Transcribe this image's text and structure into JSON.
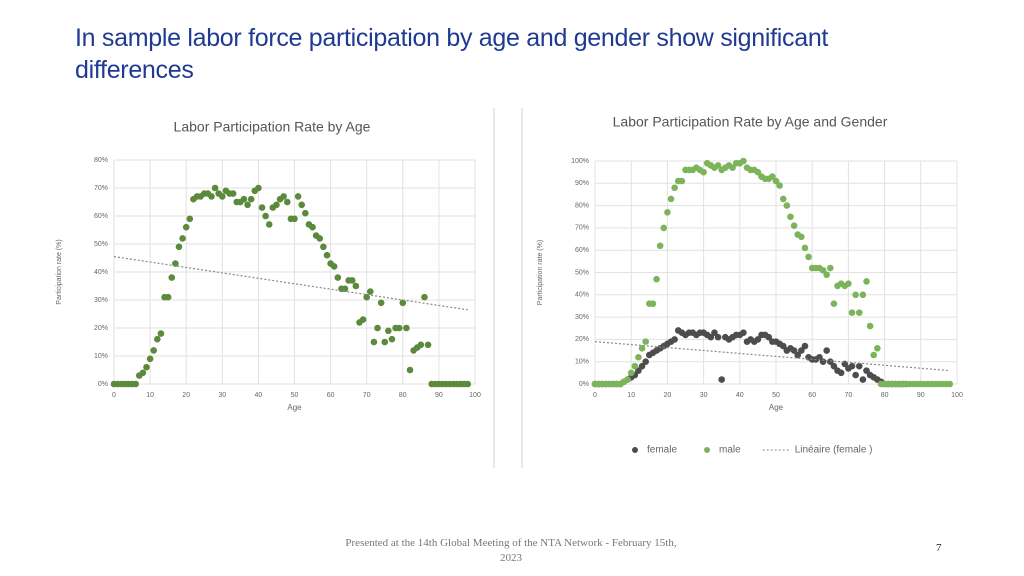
{
  "slide": {
    "title": "In sample labor force participation by age and gender show significant differences",
    "footer": "Presented at the 14th Global Meeting of the NTA Network - February 15th, 2023",
    "page_number": "7"
  },
  "chart_data": [
    {
      "type": "scatter",
      "title": "Labor Participation Rate by Age",
      "xlabel": "Age",
      "ylabel": "Participation rate (%)",
      "xlim": [
        0,
        100
      ],
      "xticks": [
        0,
        10,
        20,
        30,
        40,
        50,
        60,
        70,
        80,
        90,
        100
      ],
      "ylim": [
        0,
        80
      ],
      "yticks": [
        {
          "value": 0,
          "label": "0%"
        },
        {
          "value": 10,
          "label": "10%"
        },
        {
          "value": 20,
          "label": "20%"
        },
        {
          "value": 30,
          "label": "30%"
        },
        {
          "value": 40,
          "label": "40%"
        },
        {
          "value": 50,
          "label": "50%"
        },
        {
          "value": 60,
          "label": "60%"
        },
        {
          "value": 70,
          "label": "70%"
        },
        {
          "value": 80,
          "label": "80%"
        }
      ],
      "grid": true,
      "legend": false,
      "series": [
        {
          "color": "#5b8a3c",
          "x": [
            0,
            1,
            2,
            3,
            4,
            5,
            6,
            7,
            8,
            9,
            10,
            11,
            12,
            13,
            14,
            15,
            16,
            17,
            18,
            19,
            20,
            21,
            22,
            23,
            24,
            25,
            26,
            27,
            28,
            29,
            30,
            31,
            32,
            33,
            34,
            35,
            36,
            37,
            38,
            39,
            40,
            41,
            42,
            43,
            44,
            45,
            46,
            47,
            48,
            49,
            50,
            51,
            52,
            53,
            54,
            55,
            56,
            57,
            58,
            59,
            60,
            61,
            62,
            63,
            64,
            65,
            66,
            67,
            68,
            69,
            70,
            71,
            72,
            73,
            74,
            75,
            76,
            77,
            78,
            79,
            80,
            81,
            82,
            83,
            84,
            85,
            86,
            87,
            88,
            89,
            90,
            91,
            92,
            93,
            94,
            95,
            96,
            97,
            98
          ],
          "values": [
            0,
            0,
            0,
            0,
            0,
            0,
            0,
            3,
            4,
            6,
            9,
            12,
            16,
            18,
            31,
            31,
            38,
            43,
            49,
            52,
            56,
            59,
            66,
            67,
            67,
            68,
            68,
            67,
            70,
            68,
            67,
            69,
            68,
            68,
            65,
            65,
            66,
            64,
            66,
            69,
            70,
            63,
            60,
            57,
            63,
            64,
            66,
            67,
            65,
            59,
            59,
            67,
            64,
            61,
            57,
            56,
            53,
            52,
            49,
            46,
            43,
            42,
            38,
            34,
            34,
            37,
            37,
            35,
            22,
            23,
            31,
            33,
            15,
            20,
            29,
            15,
            19,
            16,
            20,
            20,
            29,
            20,
            5,
            12,
            13,
            14,
            31,
            14,
            0,
            0,
            0,
            0,
            0,
            0,
            0,
            0,
            0,
            0,
            0
          ]
        },
        {
          "color": "#888888",
          "style": "dotted",
          "x": [
            0,
            98
          ],
          "values": [
            45.5,
            26.5
          ]
        }
      ]
    },
    {
      "type": "scatter",
      "title": "Labor Participation Rate by Age and Gender",
      "xlabel": "Age",
      "ylabel": "Participation rate (%)",
      "xlim": [
        0,
        100
      ],
      "xticks": [
        0,
        10,
        20,
        30,
        40,
        50,
        60,
        70,
        80,
        90,
        100
      ],
      "ylim": [
        0,
        100
      ],
      "yticks": [
        {
          "value": 0,
          "label": "0%"
        },
        {
          "value": 10,
          "label": "10%"
        },
        {
          "value": 20,
          "label": "20%"
        },
        {
          "value": 30,
          "label": "30%"
        },
        {
          "value": 40,
          "label": "40%"
        },
        {
          "value": 50,
          "label": "50%"
        },
        {
          "value": 60,
          "label": "60%"
        },
        {
          "value": 70,
          "label": "70%"
        },
        {
          "value": 80,
          "label": "80%"
        },
        {
          "value": 90,
          "label": "90%"
        },
        {
          "value": 100,
          "label": "100%"
        }
      ],
      "grid": true,
      "legend": "bottom",
      "series": [
        {
          "name": "female",
          "color": "#4d4d4d",
          "x": [
            0,
            1,
            2,
            3,
            4,
            5,
            6,
            7,
            8,
            9,
            10,
            11,
            12,
            13,
            14,
            15,
            16,
            17,
            18,
            19,
            20,
            21,
            22,
            23,
            24,
            25,
            26,
            27,
            28,
            29,
            30,
            31,
            32,
            33,
            34,
            35,
            36,
            37,
            38,
            39,
            40,
            41,
            42,
            43,
            44,
            45,
            46,
            47,
            48,
            49,
            50,
            51,
            52,
            53,
            54,
            55,
            56,
            57,
            58,
            59,
            60,
            61,
            62,
            63,
            64,
            65,
            66,
            67,
            68,
            69,
            70,
            71,
            72,
            73,
            74,
            75,
            76,
            77,
            78,
            79,
            80,
            81,
            82,
            83,
            84,
            85,
            86,
            87,
            88,
            89,
            90,
            91,
            92,
            93,
            94,
            95,
            96,
            97,
            98
          ],
          "values": [
            0,
            0,
            0,
            0,
            0,
            0,
            0,
            0,
            1,
            2,
            3,
            4,
            6,
            8,
            10,
            13,
            14,
            15,
            16,
            17,
            18,
            19,
            20,
            24,
            23,
            22,
            23,
            23,
            22,
            23,
            23,
            22,
            21,
            23,
            21,
            2,
            21,
            20,
            21,
            22,
            22,
            23,
            19,
            20,
            19,
            20,
            22,
            22,
            21,
            19,
            19,
            18,
            17,
            15,
            16,
            15,
            13,
            15,
            17,
            12,
            11,
            11,
            12,
            10,
            15,
            10,
            8,
            6,
            5,
            9,
            7,
            8,
            4,
            8,
            2,
            6,
            4,
            3,
            2,
            1,
            0,
            0,
            0,
            0,
            0,
            0,
            0,
            null,
            null,
            null,
            null,
            null,
            null,
            null,
            null,
            null,
            null,
            null,
            null
          ]
        },
        {
          "name": "male",
          "color": "#7cb45c",
          "x": [
            0,
            1,
            2,
            3,
            4,
            5,
            6,
            7,
            8,
            9,
            10,
            11,
            12,
            13,
            14,
            15,
            16,
            17,
            18,
            19,
            20,
            21,
            22,
            23,
            24,
            25,
            26,
            27,
            28,
            29,
            30,
            31,
            32,
            33,
            34,
            35,
            36,
            37,
            38,
            39,
            40,
            41,
            42,
            43,
            44,
            45,
            46,
            47,
            48,
            49,
            50,
            51,
            52,
            53,
            54,
            55,
            56,
            57,
            58,
            59,
            60,
            61,
            62,
            63,
            64,
            65,
            66,
            67,
            68,
            69,
            70,
            71,
            72,
            73,
            74,
            75,
            76,
            77,
            78,
            79,
            80,
            81,
            82,
            83,
            84,
            85,
            86,
            87,
            88,
            89,
            90,
            91,
            92,
            93,
            94,
            95,
            96,
            97,
            98
          ],
          "values": [
            0,
            0,
            0,
            0,
            0,
            0,
            0,
            0,
            1,
            2,
            5,
            8,
            12,
            16,
            19,
            36,
            36,
            47,
            62,
            70,
            77,
            83,
            88,
            91,
            91,
            96,
            96,
            96,
            97,
            96,
            95,
            99,
            98,
            97,
            98,
            96,
            97,
            98,
            97,
            99,
            99,
            100,
            97,
            96,
            96,
            95,
            93,
            92,
            92,
            93,
            91,
            89,
            83,
            80,
            75,
            71,
            67,
            66,
            61,
            57,
            52,
            52,
            52,
            51,
            49,
            52,
            36,
            44,
            45,
            44,
            45,
            32,
            40,
            32,
            40,
            46,
            26,
            13,
            16,
            0,
            0,
            0,
            0,
            0,
            0,
            0,
            0,
            0,
            0,
            0,
            0,
            0,
            0,
            0,
            0,
            0,
            0,
            0,
            0
          ]
        },
        {
          "name": "Linéaire (female )",
          "color": "#888888",
          "style": "dotted",
          "x": [
            0,
            98
          ],
          "values": [
            19,
            6
          ]
        }
      ]
    }
  ]
}
